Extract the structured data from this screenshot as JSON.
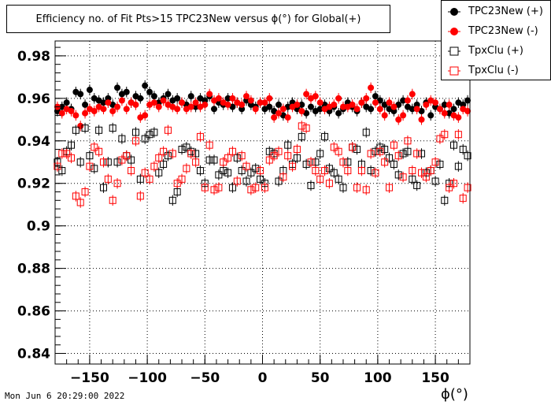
{
  "title": "Efficiency no. of Fit Pts>15 TPC23New versus ϕ(°) for Global(+)",
  "footer": "Mon Jun  6 20:29:00 2022",
  "chart_data": {
    "type": "scatter",
    "title": "Efficiency no. of Fit Pts>15 TPC23New versus ϕ(°) for Global(+)",
    "xlabel": "ϕ(°)",
    "ylabel": "",
    "xlim": [
      -180,
      180
    ],
    "ylim": [
      0.835,
      0.987
    ],
    "x_ticks": [
      -150,
      -100,
      -50,
      0,
      50,
      100,
      150
    ],
    "x_tick_labels": [
      "−150",
      "−100",
      "−50",
      "0",
      "50",
      "100",
      "150"
    ],
    "y_ticks": [
      0.84,
      0.86,
      0.88,
      0.9,
      0.92,
      0.94,
      0.96,
      0.98
    ],
    "y_tick_labels": [
      "0.84",
      "0.86",
      "0.88",
      "0.9",
      "0.92",
      "0.94",
      "0.96",
      "0.98"
    ],
    "grid": true,
    "legend_position": "top-right",
    "x": [
      -178,
      -174,
      -170,
      -166,
      -162,
      -158,
      -154,
      -150,
      -146,
      -142,
      -138,
      -134,
      -130,
      -126,
      -122,
      -118,
      -114,
      -110,
      -106,
      -102,
      -98,
      -94,
      -90,
      -86,
      -82,
      -78,
      -74,
      -70,
      -66,
      -62,
      -58,
      -54,
      -50,
      -46,
      -42,
      -38,
      -34,
      -30,
      -26,
      -22,
      -18,
      -14,
      -10,
      -6,
      -2,
      2,
      6,
      10,
      14,
      18,
      22,
      26,
      30,
      34,
      38,
      42,
      46,
      50,
      54,
      58,
      62,
      66,
      70,
      74,
      78,
      82,
      86,
      90,
      94,
      98,
      102,
      106,
      110,
      114,
      118,
      122,
      126,
      130,
      134,
      138,
      142,
      146,
      150,
      154,
      158,
      162,
      166,
      170,
      174,
      178
    ],
    "series": [
      {
        "name": "TPC23New (+)",
        "color": "#000000",
        "marker": "filled-circle",
        "values": [
          0.954,
          0.956,
          0.958,
          0.955,
          0.963,
          0.962,
          0.957,
          0.964,
          0.96,
          0.959,
          0.958,
          0.96,
          0.957,
          0.965,
          0.962,
          0.963,
          0.958,
          0.961,
          0.96,
          0.966,
          0.963,
          0.961,
          0.958,
          0.96,
          0.962,
          0.959,
          0.96,
          0.958,
          0.957,
          0.961,
          0.956,
          0.96,
          0.959,
          0.961,
          0.955,
          0.958,
          0.957,
          0.96,
          0.956,
          0.958,
          0.955,
          0.959,
          0.957,
          0.956,
          0.958,
          0.955,
          0.956,
          0.954,
          0.957,
          0.952,
          0.956,
          0.958,
          0.955,
          0.957,
          0.953,
          0.956,
          0.954,
          0.955,
          0.957,
          0.954,
          0.956,
          0.953,
          0.955,
          0.958,
          0.956,
          0.954,
          0.958,
          0.956,
          0.955,
          0.961,
          0.959,
          0.957,
          0.955,
          0.954,
          0.957,
          0.959,
          0.956,
          0.955,
          0.957,
          0.954,
          0.958,
          0.952,
          0.956,
          0.955,
          0.957,
          0.953,
          0.955,
          0.958,
          0.957,
          0.959
        ]
      },
      {
        "name": "TPC23New (-)",
        "color": "#ff0000",
        "marker": "filled-circle",
        "values": [
          0.956,
          0.953,
          0.955,
          0.954,
          0.952,
          0.947,
          0.953,
          0.955,
          0.954,
          0.956,
          0.955,
          0.958,
          0.954,
          0.956,
          0.959,
          0.955,
          0.958,
          0.957,
          0.951,
          0.952,
          0.957,
          0.958,
          0.956,
          0.959,
          0.957,
          0.956,
          0.955,
          0.958,
          0.955,
          0.956,
          0.958,
          0.956,
          0.957,
          0.962,
          0.959,
          0.96,
          0.958,
          0.957,
          0.96,
          0.958,
          0.957,
          0.961,
          0.959,
          0.955,
          0.958,
          0.958,
          0.96,
          0.951,
          0.953,
          0.955,
          0.951,
          0.956,
          0.957,
          0.954,
          0.962,
          0.96,
          0.961,
          0.958,
          0.955,
          0.956,
          0.957,
          0.96,
          0.956,
          0.956,
          0.957,
          0.955,
          0.958,
          0.96,
          0.965,
          0.958,
          0.955,
          0.952,
          0.958,
          0.956,
          0.95,
          0.952,
          0.959,
          0.962,
          0.955,
          0.95,
          0.957,
          0.959,
          0.958,
          0.955,
          0.953,
          0.957,
          0.952,
          0.951,
          0.955,
          0.954
        ]
      },
      {
        "name": "TpxClu (+)",
        "color": "#000000",
        "marker": "open-square",
        "values": [
          0.93,
          0.926,
          0.935,
          0.938,
          0.945,
          0.93,
          0.946,
          0.933,
          0.927,
          0.945,
          0.918,
          0.93,
          0.946,
          0.93,
          0.941,
          0.933,
          0.931,
          0.944,
          0.922,
          0.941,
          0.943,
          0.944,
          0.925,
          0.929,
          0.933,
          0.912,
          0.916,
          0.936,
          0.937,
          0.935,
          0.934,
          0.926,
          0.92,
          0.931,
          0.931,
          0.924,
          0.926,
          0.925,
          0.918,
          0.932,
          0.926,
          0.921,
          0.925,
          0.927,
          0.922,
          0.92,
          0.935,
          0.934,
          0.921,
          0.926,
          0.938,
          0.929,
          0.932,
          0.942,
          0.929,
          0.919,
          0.93,
          0.934,
          0.942,
          0.927,
          0.925,
          0.922,
          0.918,
          0.93,
          0.937,
          0.936,
          0.929,
          0.944,
          0.926,
          0.935,
          0.937,
          0.936,
          0.932,
          0.929,
          0.924,
          0.934,
          0.935,
          0.922,
          0.919,
          0.934,
          0.925,
          0.926,
          0.921,
          0.929,
          0.912,
          0.92,
          0.938,
          0.928,
          0.936,
          0.933
        ]
      },
      {
        "name": "TpxClu (-)",
        "color": "#ff0000",
        "marker": "open-square",
        "values": [
          0.928,
          0.934,
          0.934,
          0.932,
          0.914,
          0.911,
          0.916,
          0.928,
          0.937,
          0.935,
          0.93,
          0.922,
          0.912,
          0.92,
          0.931,
          0.933,
          0.926,
          0.94,
          0.914,
          0.925,
          0.922,
          0.928,
          0.932,
          0.935,
          0.945,
          0.934,
          0.92,
          0.922,
          0.927,
          0.934,
          0.93,
          0.942,
          0.918,
          0.938,
          0.917,
          0.918,
          0.93,
          0.932,
          0.935,
          0.921,
          0.933,
          0.928,
          0.917,
          0.918,
          0.926,
          0.918,
          0.931,
          0.933,
          0.935,
          0.923,
          0.933,
          0.928,
          0.936,
          0.947,
          0.946,
          0.93,
          0.926,
          0.922,
          0.926,
          0.92,
          0.937,
          0.935,
          0.93,
          0.926,
          0.937,
          0.918,
          0.926,
          0.917,
          0.934,
          0.925,
          0.935,
          0.93,
          0.918,
          0.938,
          0.933,
          0.923,
          0.94,
          0.926,
          0.934,
          0.925,
          0.923,
          0.926,
          0.93,
          0.941,
          0.943,
          0.918,
          0.92,
          0.943,
          0.913,
          0.918
        ]
      }
    ]
  }
}
